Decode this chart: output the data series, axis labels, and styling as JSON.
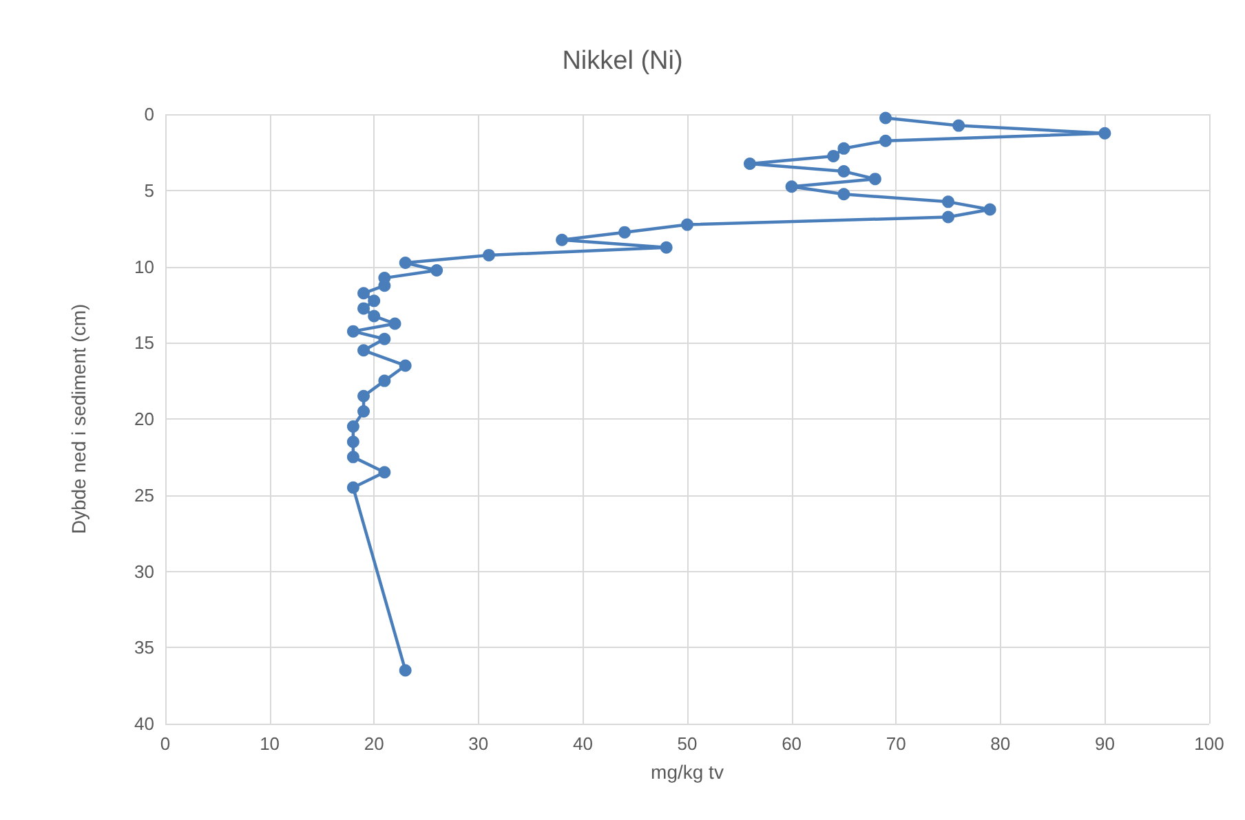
{
  "chart_data": {
    "type": "line",
    "title": "Nikkel (Ni)",
    "xlabel": "mg/kg tv",
    "ylabel": "Dybde ned i sediment (cm)",
    "x": [
      69,
      76,
      90,
      69,
      65,
      64,
      56,
      65,
      68,
      60,
      65,
      75,
      79,
      75,
      50,
      44,
      38,
      48,
      31,
      23,
      26,
      21,
      21,
      19,
      20,
      19,
      20,
      22,
      18,
      21,
      19,
      23,
      21,
      19,
      19,
      18,
      18,
      18,
      21,
      18,
      23
    ],
    "values": [
      0.25,
      0.75,
      1.25,
      1.75,
      2.25,
      2.75,
      3.25,
      3.75,
      4.25,
      4.75,
      5.25,
      5.75,
      6.25,
      6.75,
      7.25,
      7.75,
      8.25,
      8.75,
      9.25,
      9.75,
      10.25,
      10.75,
      11.25,
      11.75,
      12.25,
      12.75,
      13.25,
      13.75,
      14.25,
      14.75,
      15.5,
      16.5,
      17.5,
      18.5,
      19.5,
      20.5,
      21.5,
      22.5,
      23.5,
      24.5,
      36.5
    ],
    "color": "#4a7ebb",
    "xlim": [
      0,
      100
    ],
    "xticks": [
      0,
      10,
      20,
      30,
      40,
      50,
      60,
      70,
      80,
      90,
      100
    ],
    "ylim": [
      40,
      0
    ],
    "yticks": [
      0,
      5,
      10,
      15,
      20,
      25,
      30,
      35,
      40
    ],
    "grid": true,
    "marker": "circle",
    "line_style": "solid"
  }
}
